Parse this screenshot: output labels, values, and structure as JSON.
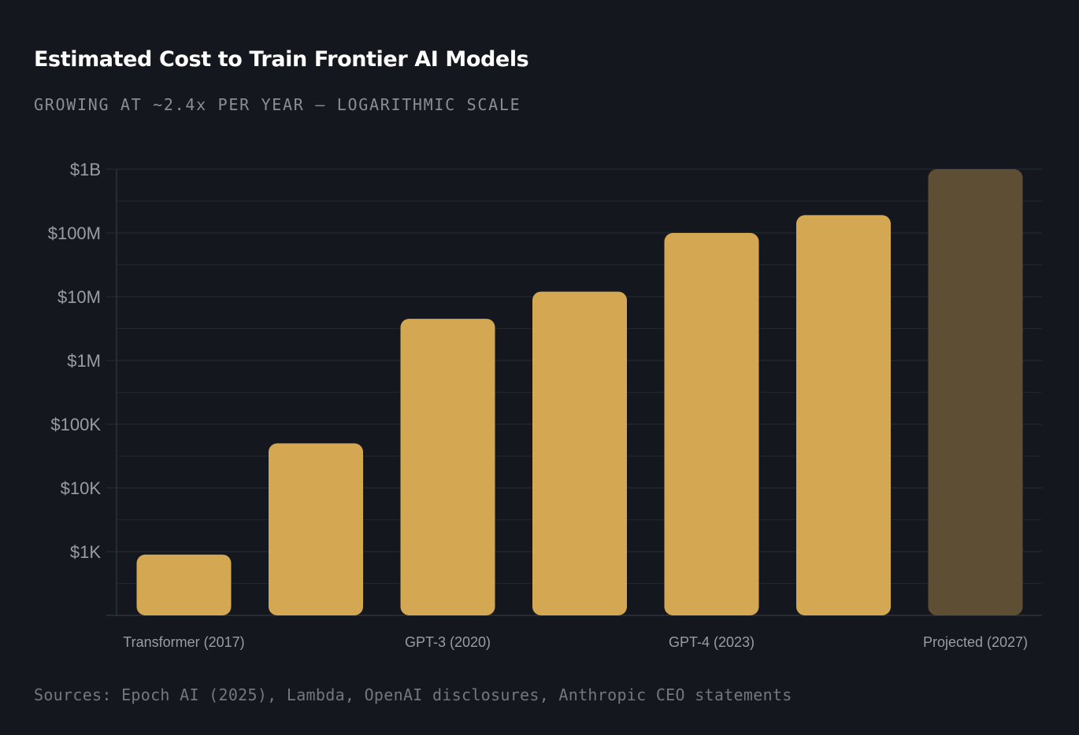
{
  "header": {
    "title": "Estimated Cost to Train Frontier AI Models",
    "subtitle": "GROWING AT ~2.4x PER YEAR — LOGARITHMIC SCALE"
  },
  "footer": {
    "sources": "Sources: Epoch AI (2025), Lambda, OpenAI disclosures, Anthropic CEO statements"
  },
  "colors": {
    "background": "#14181e",
    "bar": "#d4a853",
    "projected_bar": "#5e4e33",
    "grid": "#22262d",
    "axis": "#2e3239"
  },
  "chart_data": {
    "type": "bar",
    "title": "Estimated Cost to Train Frontier AI Models",
    "subtitle": "GROWING AT ~2.4x PER YEAR — LOGARITHMIC SCALE",
    "yscale": "log",
    "ylim": [
      100,
      1000000000
    ],
    "yticks": [
      1000,
      10000,
      100000,
      1000000,
      10000000,
      100000000,
      1000000000
    ],
    "ytick_labels": [
      "$1K",
      "$10K",
      "$100K",
      "$1M",
      "$10M",
      "$100M",
      "$1B"
    ],
    "grid": true,
    "categories": [
      "Transformer (2017)",
      "",
      "GPT-3 (2020)",
      "",
      "GPT-4 (2023)",
      "",
      "Projected (2027)"
    ],
    "values": [
      900,
      50000,
      4500000,
      12000000,
      100000000,
      190000000,
      1000000000
    ],
    "projected": [
      false,
      false,
      false,
      false,
      false,
      false,
      true
    ]
  }
}
